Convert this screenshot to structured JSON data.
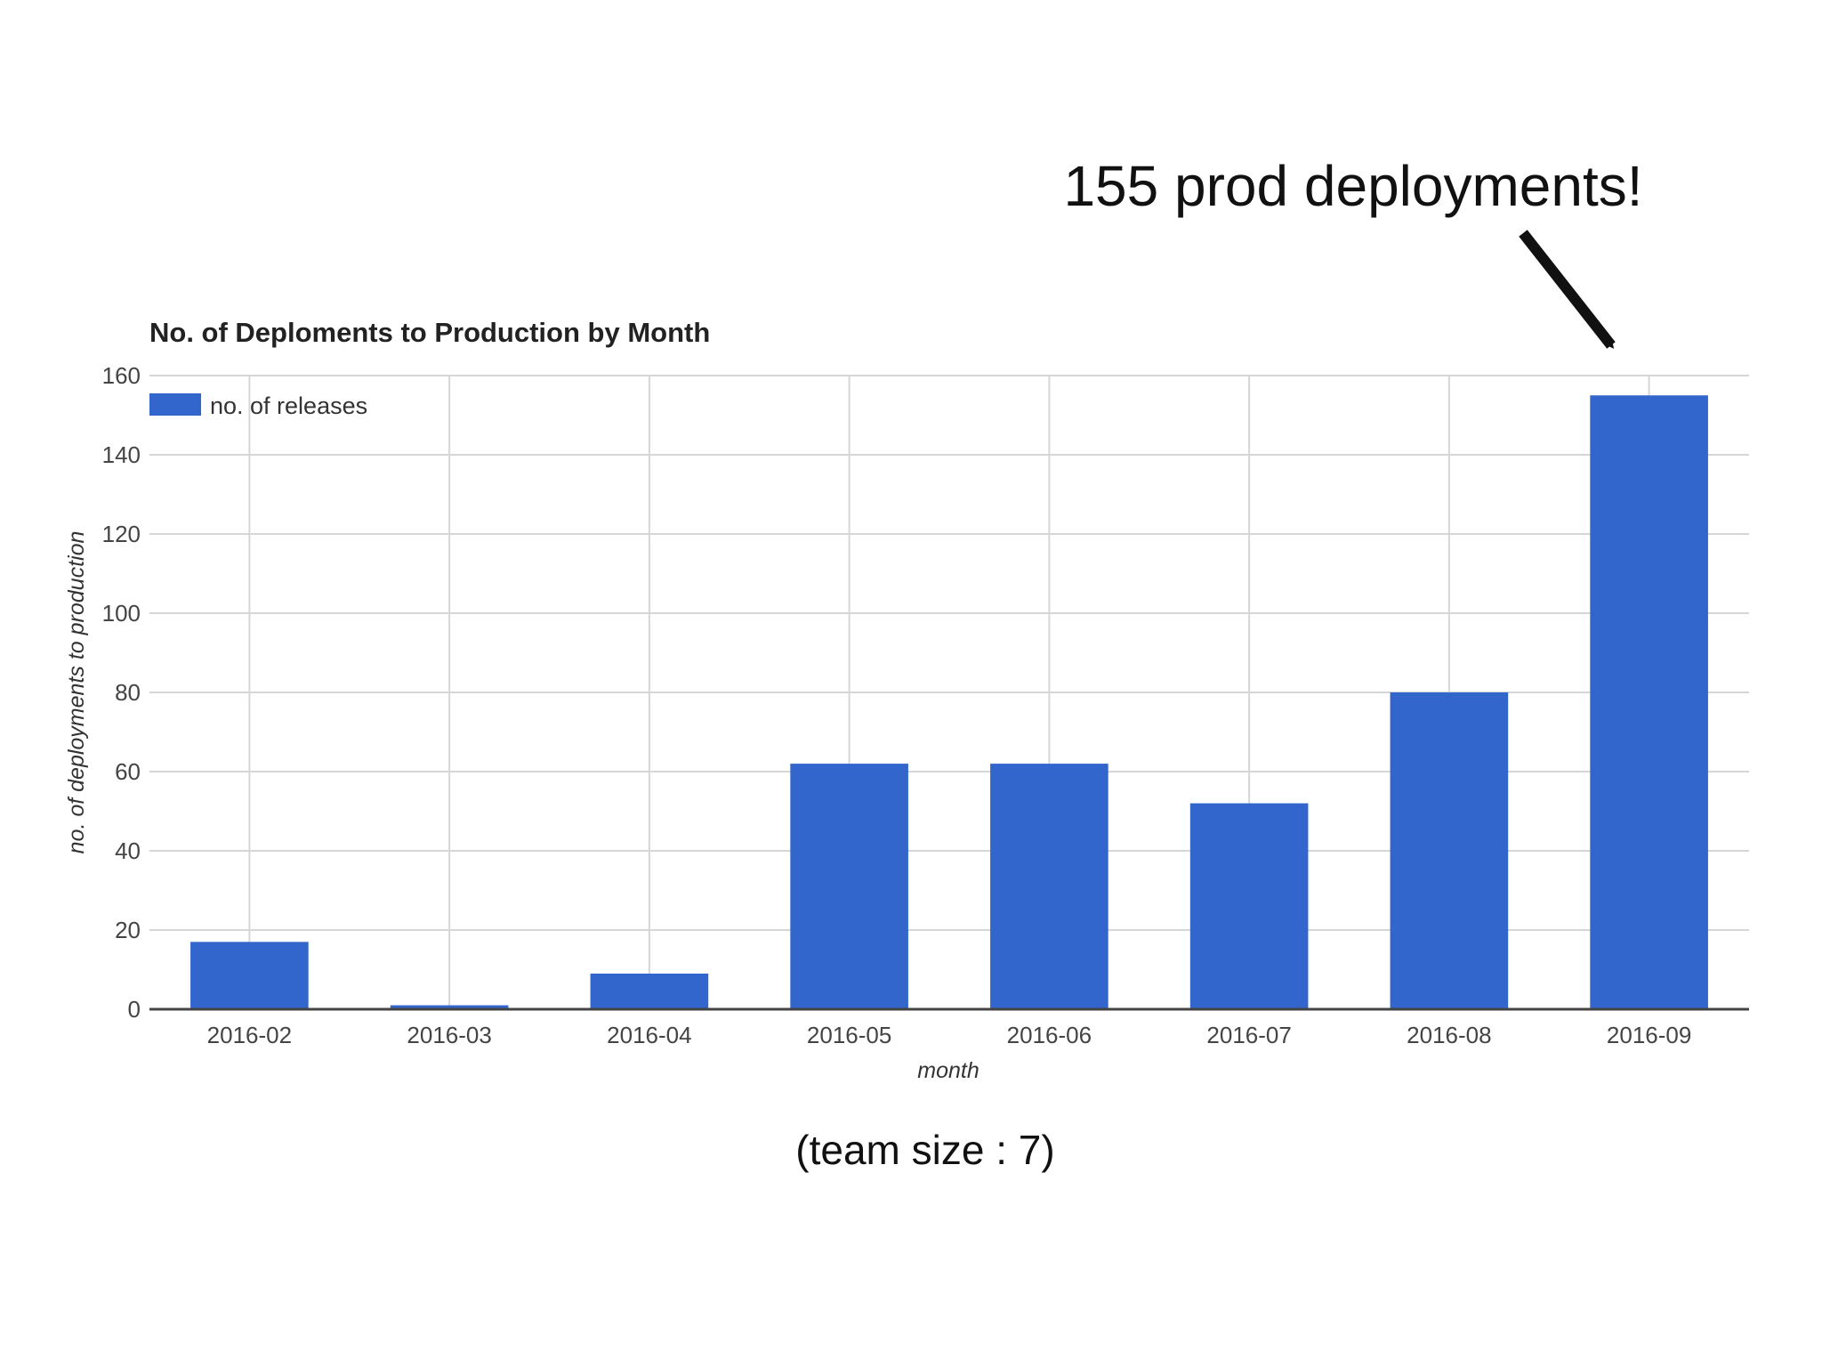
{
  "chart_data": {
    "type": "bar",
    "title": "No. of Deploments to Production by Month",
    "xlabel": "month",
    "ylabel": "no. of deployments to production",
    "categories": [
      "2016-02",
      "2016-03",
      "2016-04",
      "2016-05",
      "2016-06",
      "2016-07",
      "2016-08",
      "2016-09"
    ],
    "series": [
      {
        "name": "no. of releases",
        "values": [
          17,
          1,
          9,
          62,
          62,
          52,
          80,
          155
        ],
        "color": "#3366cc"
      }
    ],
    "ylim": [
      0,
      160
    ],
    "yticks": [
      0,
      20,
      40,
      60,
      80,
      100,
      120,
      140,
      160
    ],
    "grid": true,
    "legend_position": "top-left"
  },
  "annotation": {
    "text": "155 prod deployments!"
  },
  "caption": {
    "text": "(team size : 7)"
  }
}
